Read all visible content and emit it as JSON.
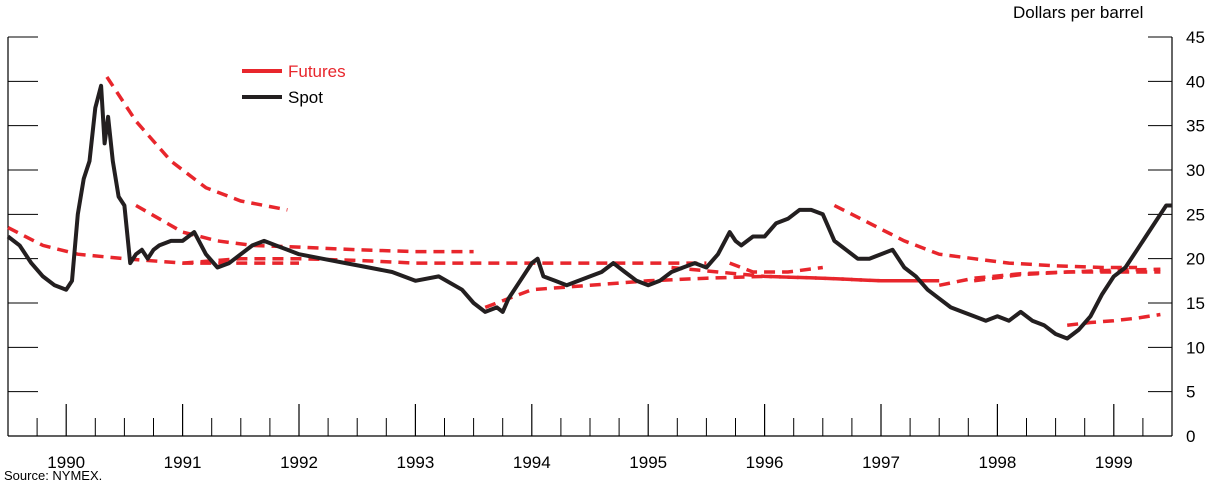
{
  "chart_data": {
    "type": "line",
    "title": "",
    "ylabel": "Dollars per barrel",
    "xlabel": "",
    "ylim": [
      0,
      45
    ],
    "yticks": [
      0,
      5,
      10,
      15,
      20,
      25,
      30,
      35,
      40,
      45
    ],
    "x_tick_labels": [
      "1990",
      "1991",
      "1992",
      "1993",
      "1994",
      "1995",
      "1996",
      "1997",
      "1998",
      "1999"
    ],
    "x_range": [
      1989.5,
      1999.5
    ],
    "legend": {
      "placement": "top-left",
      "entries": [
        {
          "name": "Futures",
          "color": "#e8262c",
          "style": "dashed"
        },
        {
          "name": "Spot",
          "color": "#231f20",
          "style": "solid"
        }
      ]
    },
    "spot_series": {
      "name": "Spot",
      "x": [
        1989.5,
        1989.6,
        1989.7,
        1989.8,
        1989.9,
        1990.0,
        1990.05,
        1990.1,
        1990.15,
        1990.2,
        1990.25,
        1990.3,
        1990.33,
        1990.36,
        1990.4,
        1990.45,
        1990.5,
        1990.55,
        1990.6,
        1990.65,
        1990.7,
        1990.75,
        1990.8,
        1990.9,
        1991.0,
        1991.1,
        1991.2,
        1991.3,
        1991.4,
        1991.5,
        1991.6,
        1991.7,
        1991.8,
        1991.9,
        1992.0,
        1992.2,
        1992.4,
        1992.6,
        1992.8,
        1993.0,
        1993.2,
        1993.4,
        1993.5,
        1993.6,
        1993.7,
        1993.75,
        1993.8,
        1993.9,
        1994.0,
        1994.05,
        1994.1,
        1994.2,
        1994.3,
        1994.5,
        1994.6,
        1994.7,
        1994.8,
        1994.9,
        1995.0,
        1995.1,
        1995.2,
        1995.3,
        1995.4,
        1995.5,
        1995.6,
        1995.7,
        1995.75,
        1995.8,
        1995.9,
        1996.0,
        1996.1,
        1996.2,
        1996.3,
        1996.4,
        1996.5,
        1996.55,
        1996.6,
        1996.7,
        1996.8,
        1996.9,
        1997.0,
        1997.1,
        1997.2,
        1997.3,
        1997.4,
        1997.5,
        1997.6,
        1997.7,
        1997.8,
        1997.9,
        1998.0,
        1998.1,
        1998.2,
        1998.3,
        1998.4,
        1998.5,
        1998.6,
        1998.7,
        1998.8,
        1998.9,
        1999.0,
        1999.1,
        1999.2,
        1999.3,
        1999.4,
        1999.45,
        1999.5
      ],
      "values": [
        22.5,
        21.5,
        19.5,
        18.0,
        17.0,
        16.5,
        17.5,
        25.0,
        29.0,
        31.0,
        37.0,
        39.5,
        33.0,
        36.0,
        31.0,
        27.0,
        26.0,
        19.5,
        20.5,
        21.0,
        20.0,
        21.0,
        21.5,
        22.0,
        22.0,
        23.0,
        20.5,
        19.0,
        19.5,
        20.5,
        21.5,
        22.0,
        21.5,
        21.0,
        20.5,
        20.0,
        19.5,
        19.0,
        18.5,
        17.5,
        18.0,
        16.5,
        15.0,
        14.0,
        14.5,
        14.0,
        15.5,
        17.5,
        19.5,
        20.0,
        18.0,
        17.5,
        17.0,
        18.0,
        18.5,
        19.5,
        18.5,
        17.5,
        17.0,
        17.5,
        18.5,
        19.0,
        19.5,
        19.0,
        20.5,
        23.0,
        22.0,
        21.5,
        22.5,
        22.5,
        24.0,
        24.5,
        25.5,
        25.5,
        25.0,
        23.5,
        22.0,
        21.0,
        20.0,
        20.0,
        20.5,
        21.0,
        19.0,
        18.0,
        16.5,
        15.5,
        14.5,
        14.0,
        13.5,
        13.0,
        13.5,
        13.0,
        14.0,
        13.0,
        12.5,
        11.5,
        11.0,
        12.0,
        13.5,
        16.0,
        18.0,
        19.0,
        21.0,
        23.0,
        25.0,
        26.0,
        26.0
      ]
    },
    "futures_curves": [
      {
        "x": [
          1990.35,
          1990.6,
          1990.9,
          1991.2,
          1991.5,
          1991.9
        ],
        "values": [
          40.5,
          35.5,
          31.0,
          28.0,
          26.5,
          25.5
        ]
      },
      {
        "x": [
          1990.6,
          1990.8,
          1991.0,
          1991.3,
          1991.6,
          1992.0,
          1992.5,
          1993.0,
          1993.5
        ],
        "values": [
          26.0,
          24.5,
          23.0,
          22.0,
          21.5,
          21.3,
          21.0,
          20.8,
          20.8
        ]
      },
      {
        "x": [
          1989.5,
          1989.8,
          1990.1,
          1990.5,
          1991.0,
          1991.5,
          1992.0
        ],
        "values": [
          23.5,
          21.5,
          20.5,
          20.0,
          19.5,
          19.5,
          19.5
        ]
      },
      {
        "x": [
          1991.0,
          1991.5,
          1992.0,
          1992.5,
          1993.0,
          1993.5,
          1994.0,
          1994.5,
          1995.0,
          1995.5
        ],
        "values": [
          19.5,
          20.0,
          20.0,
          19.8,
          19.5,
          19.5,
          19.5,
          19.5,
          19.5,
          19.5
        ]
      },
      {
        "x": [
          1993.6,
          1994.0,
          1994.5,
          1995.0,
          1995.5,
          1996.0,
          1996.5,
          1997.0,
          1997.5
        ],
        "values": [
          14.5,
          16.5,
          17.0,
          17.5,
          17.8,
          18.0,
          17.8,
          17.5,
          17.5
        ]
      },
      {
        "x": [
          1995.2,
          1995.6,
          1996.0,
          1996.5,
          1997.0,
          1997.5
        ],
        "values": [
          19.0,
          18.5,
          18.0,
          17.8,
          17.5,
          17.5
        ]
      },
      {
        "x": [
          1995.7,
          1995.9,
          1996.2,
          1996.5
        ],
        "values": [
          19.5,
          18.5,
          18.5,
          19.0
        ]
      },
      {
        "x": [
          1996.6,
          1996.9,
          1997.2,
          1997.5,
          1997.8,
          1998.1,
          1998.5,
          1998.9,
          1999.2
        ],
        "values": [
          26.0,
          24.0,
          22.0,
          20.5,
          20.0,
          19.5,
          19.2,
          19.0,
          19.0
        ]
      },
      {
        "x": [
          1997.5,
          1997.8,
          1998.2,
          1998.6,
          1999.0,
          1999.4
        ],
        "values": [
          17.0,
          17.8,
          18.3,
          18.5,
          18.5,
          18.5
        ]
      },
      {
        "x": [
          1997.8,
          1998.2,
          1998.6,
          1999.0,
          1999.4
        ],
        "values": [
          17.5,
          18.2,
          18.5,
          18.7,
          18.8
        ]
      },
      {
        "x": [
          1998.6,
          1998.8,
          1999.0,
          1999.2,
          1999.4
        ],
        "values": [
          12.5,
          12.8,
          13.0,
          13.3,
          13.7
        ]
      }
    ]
  },
  "source": "Source: NYMEX."
}
